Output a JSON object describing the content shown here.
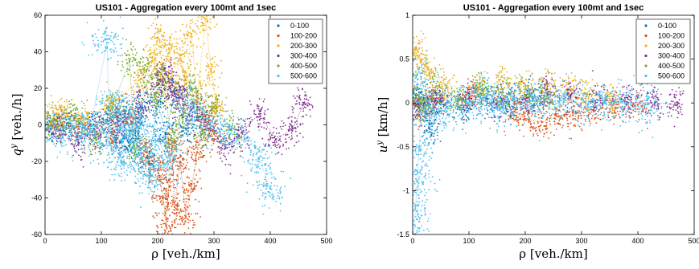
{
  "chart_data": [
    {
      "type": "scatter",
      "title": "US101 - Aggregation every 100mt and 1sec",
      "xlabel": "ρ [veh./km]",
      "ylabel": "q^y [veh./h]",
      "ylabel_base": "q",
      "ylabel_sup": "y",
      "ylabel_rest": " [veh./h]",
      "xlim": [
        0,
        500
      ],
      "ylim": [
        -60,
        60
      ],
      "xticks": [
        "0",
        "100",
        "200",
        "300",
        "400",
        "500"
      ],
      "yticks": [
        "-60",
        "-40",
        "-20",
        "0",
        "20",
        "40",
        "60"
      ],
      "grid": false,
      "legend": "top-right",
      "series": [
        {
          "name": "0-100",
          "color": "#0072BD",
          "points": [
            [
              10,
              -2
            ],
            [
              40,
              1
            ],
            [
              80,
              0
            ],
            [
              110,
              3
            ],
            [
              125,
              -8
            ],
            [
              140,
              6
            ],
            [
              150,
              -12
            ],
            [
              160,
              -4
            ],
            [
              170,
              8
            ],
            [
              185,
              -20
            ],
            [
              200,
              12
            ],
            [
              215,
              -5
            ],
            [
              230,
              18
            ],
            [
              250,
              -2
            ],
            [
              270,
              4
            ]
          ]
        },
        {
          "name": "100-200",
          "color": "#D95319",
          "points": [
            [
              20,
              2
            ],
            [
              60,
              -1
            ],
            [
              120,
              -5
            ],
            [
              150,
              4
            ],
            [
              180,
              -15
            ],
            [
              200,
              -25
            ],
            [
              210,
              -40
            ],
            [
              215,
              -55
            ],
            [
              220,
              -30
            ],
            [
              225,
              -10
            ],
            [
              230,
              -45
            ],
            [
              240,
              -20
            ],
            [
              250,
              -50
            ],
            [
              260,
              -35
            ],
            [
              270,
              -15
            ],
            [
              285,
              5
            ],
            [
              300,
              -5
            ]
          ]
        },
        {
          "name": "200-300",
          "color": "#EDB120",
          "points": [
            [
              10,
              4
            ],
            [
              30,
              8
            ],
            [
              70,
              3
            ],
            [
              120,
              12
            ],
            [
              170,
              25
            ],
            [
              190,
              35
            ],
            [
              200,
              48
            ],
            [
              210,
              30
            ],
            [
              220,
              42
            ],
            [
              230,
              20
            ],
            [
              240,
              38
            ],
            [
              250,
              25
            ],
            [
              260,
              50
            ],
            [
              270,
              15
            ],
            [
              285,
              58
            ],
            [
              295,
              30
            ],
            [
              305,
              10
            ]
          ]
        },
        {
          "name": "300-400",
          "color": "#7E2F8E",
          "points": [
            [
              25,
              -3
            ],
            [
              60,
              -10
            ],
            [
              90,
              -5
            ],
            [
              130,
              2
            ],
            [
              170,
              10
            ],
            [
              200,
              22
            ],
            [
              215,
              28
            ],
            [
              225,
              18
            ],
            [
              240,
              15
            ],
            [
              260,
              8
            ],
            [
              290,
              -2
            ],
            [
              320,
              -12
            ],
            [
              350,
              -4
            ],
            [
              380,
              6
            ],
            [
              410,
              -8
            ],
            [
              440,
              -2
            ],
            [
              460,
              12
            ]
          ]
        },
        {
          "name": "400-500",
          "color": "#77AC30",
          "points": [
            [
              15,
              1
            ],
            [
              50,
              5
            ],
            [
              90,
              -8
            ],
            [
              120,
              10
            ],
            [
              150,
              35
            ],
            [
              160,
              -15
            ],
            [
              180,
              30
            ],
            [
              195,
              15
            ],
            [
              210,
              25
            ],
            [
              225,
              -10
            ],
            [
              240,
              5
            ],
            [
              260,
              20
            ],
            [
              280,
              -5
            ],
            [
              300,
              10
            ],
            [
              330,
              -3
            ]
          ]
        },
        {
          "name": "500-600",
          "color": "#4DBEEE",
          "points": [
            [
              20,
              -3
            ],
            [
              55,
              -5
            ],
            [
              80,
              -2
            ],
            [
              110,
              45
            ],
            [
              115,
              -10
            ],
            [
              125,
              10
            ],
            [
              135,
              -20
            ],
            [
              140,
              0
            ],
            [
              150,
              -5
            ],
            [
              160,
              5
            ],
            [
              170,
              -15
            ],
            [
              185,
              -30
            ],
            [
              200,
              -8
            ],
            [
              220,
              -20
            ],
            [
              260,
              10
            ],
            [
              300,
              -2
            ],
            [
              340,
              -5
            ],
            [
              380,
              -18
            ],
            [
              400,
              -35
            ]
          ]
        }
      ]
    },
    {
      "type": "scatter",
      "title": "US101 - Aggregation every 100mt and 1sec",
      "xlabel": "ρ [veh./km]",
      "ylabel": "u^y [km/h]",
      "ylabel_base": "u",
      "ylabel_sup": "y",
      "ylabel_rest": " [km/h]",
      "xlim": [
        0,
        500
      ],
      "ylim": [
        -1.5,
        1
      ],
      "xticks": [
        "0",
        "100",
        "200",
        "300",
        "400",
        "500"
      ],
      "yticks": [
        "-1.5",
        "-1",
        "-0.5",
        "0",
        "0.5",
        "1"
      ],
      "grid": false,
      "legend": "top-right",
      "series": [
        {
          "name": "0-100",
          "color": "#0072BD",
          "points": [
            [
              5,
              0.05
            ],
            [
              20,
              -0.02
            ],
            [
              30,
              -0.3
            ],
            [
              50,
              0.02
            ],
            [
              90,
              -0.05
            ],
            [
              130,
              0.05
            ],
            [
              170,
              -0.02
            ],
            [
              220,
              0.03
            ]
          ]
        },
        {
          "name": "100-200",
          "color": "#D95319",
          "points": [
            [
              10,
              -0.1
            ],
            [
              40,
              0.05
            ],
            [
              100,
              0.08
            ],
            [
              180,
              -0.1
            ],
            [
              200,
              -0.18
            ],
            [
              230,
              -0.22
            ],
            [
              260,
              -0.15
            ],
            [
              290,
              -0.12
            ],
            [
              320,
              -0.08
            ],
            [
              360,
              -0.05
            ],
            [
              400,
              -0.02
            ]
          ]
        },
        {
          "name": "200-300",
          "color": "#EDB120",
          "points": [
            [
              5,
              0.6
            ],
            [
              15,
              0.5
            ],
            [
              30,
              0.35
            ],
            [
              60,
              0.2
            ],
            [
              120,
              0.15
            ],
            [
              160,
              0.25
            ],
            [
              200,
              0.2
            ],
            [
              240,
              0.22
            ],
            [
              280,
              0.15
            ],
            [
              310,
              0.1
            ],
            [
              350,
              0.05
            ]
          ]
        },
        {
          "name": "300-400",
          "color": "#7E2F8E",
          "points": [
            [
              10,
              -0.05
            ],
            [
              40,
              0.02
            ],
            [
              100,
              0.05
            ],
            [
              150,
              0.0
            ],
            [
              200,
              0.05
            ],
            [
              240,
              0.1
            ],
            [
              280,
              0.08
            ],
            [
              330,
              0.03
            ],
            [
              380,
              0.01
            ],
            [
              430,
              0.0
            ],
            [
              470,
              -0.02
            ]
          ]
        },
        {
          "name": "400-500",
          "color": "#77AC30",
          "points": [
            [
              10,
              0.05
            ],
            [
              25,
              -0.1
            ],
            [
              40,
              0.15
            ],
            [
              80,
              0.05
            ],
            [
              120,
              0.18
            ],
            [
              160,
              0.12
            ],
            [
              200,
              0.08
            ],
            [
              240,
              0.05
            ]
          ]
        },
        {
          "name": "500-600",
          "color": "#4DBEEE",
          "points": [
            [
              2,
              -1.5
            ],
            [
              5,
              -1.2
            ],
            [
              8,
              -0.9
            ],
            [
              12,
              -0.5
            ],
            [
              15,
              0.3
            ],
            [
              30,
              -0.1
            ],
            [
              60,
              -0.05
            ],
            [
              100,
              0.0
            ],
            [
              130,
              0.08
            ],
            [
              150,
              -0.05
            ],
            [
              180,
              0.05
            ],
            [
              220,
              0.02
            ],
            [
              260,
              0.01
            ],
            [
              300,
              0.0
            ],
            [
              340,
              0.01
            ],
            [
              380,
              0.0
            ],
            [
              420,
              -0.01
            ]
          ]
        }
      ]
    }
  ]
}
